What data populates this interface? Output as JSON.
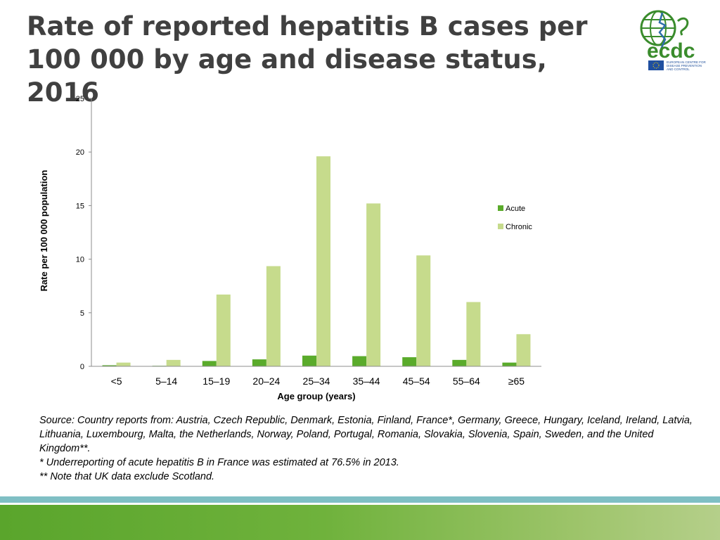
{
  "title": {
    "line1": "Rate of reported hepatitis B cases per",
    "line2": "100 000 by age and disease status, 2016"
  },
  "logo": {
    "name": "ecdc",
    "caption_lines": [
      "EUROPEAN CENTRE FOR",
      "DISEASE PREVENTION",
      "AND CONTROL"
    ],
    "icon": "globe-with-serpent-icon"
  },
  "chart_data": {
    "type": "bar",
    "title": "",
    "xlabel": "Age group (years)",
    "ylabel": "Rate per 100 000 population",
    "ylim": [
      0,
      25
    ],
    "yticks": [
      0,
      5,
      10,
      15,
      20,
      25
    ],
    "categories": [
      "<5",
      "5–14",
      "15–19",
      "20–24",
      "25–34",
      "35–44",
      "45–54",
      "55–64",
      "≥65"
    ],
    "series": [
      {
        "name": "Acute",
        "color": "#5aab2b",
        "values": [
          0.1,
          0.05,
          0.5,
          0.65,
          1.0,
          0.95,
          0.85,
          0.6,
          0.35
        ]
      },
      {
        "name": "Chronic",
        "color": "#c6db8c",
        "values": [
          0.35,
          0.6,
          6.7,
          9.35,
          19.6,
          15.2,
          10.35,
          6.0,
          3.0
        ]
      }
    ],
    "legend_position": "right",
    "grid": false
  },
  "source_notes": [
    "Source: Country reports from: Austria, Czech Republic, Denmark, Estonia, Finland, France*, Germany, Greece, Hungary, Iceland, Ireland, Latvia, Lithuania, Luxembourg, Malta, the Netherlands, Norway, Poland, Portugal, Romania, Slovakia, Slovenia, Spain, Sweden, and the United Kingdom**.",
    "* Underreporting of acute hepatitis B in France was estimated at 76.5% in 2013.",
    "** Note that UK data exclude Scotland."
  ]
}
